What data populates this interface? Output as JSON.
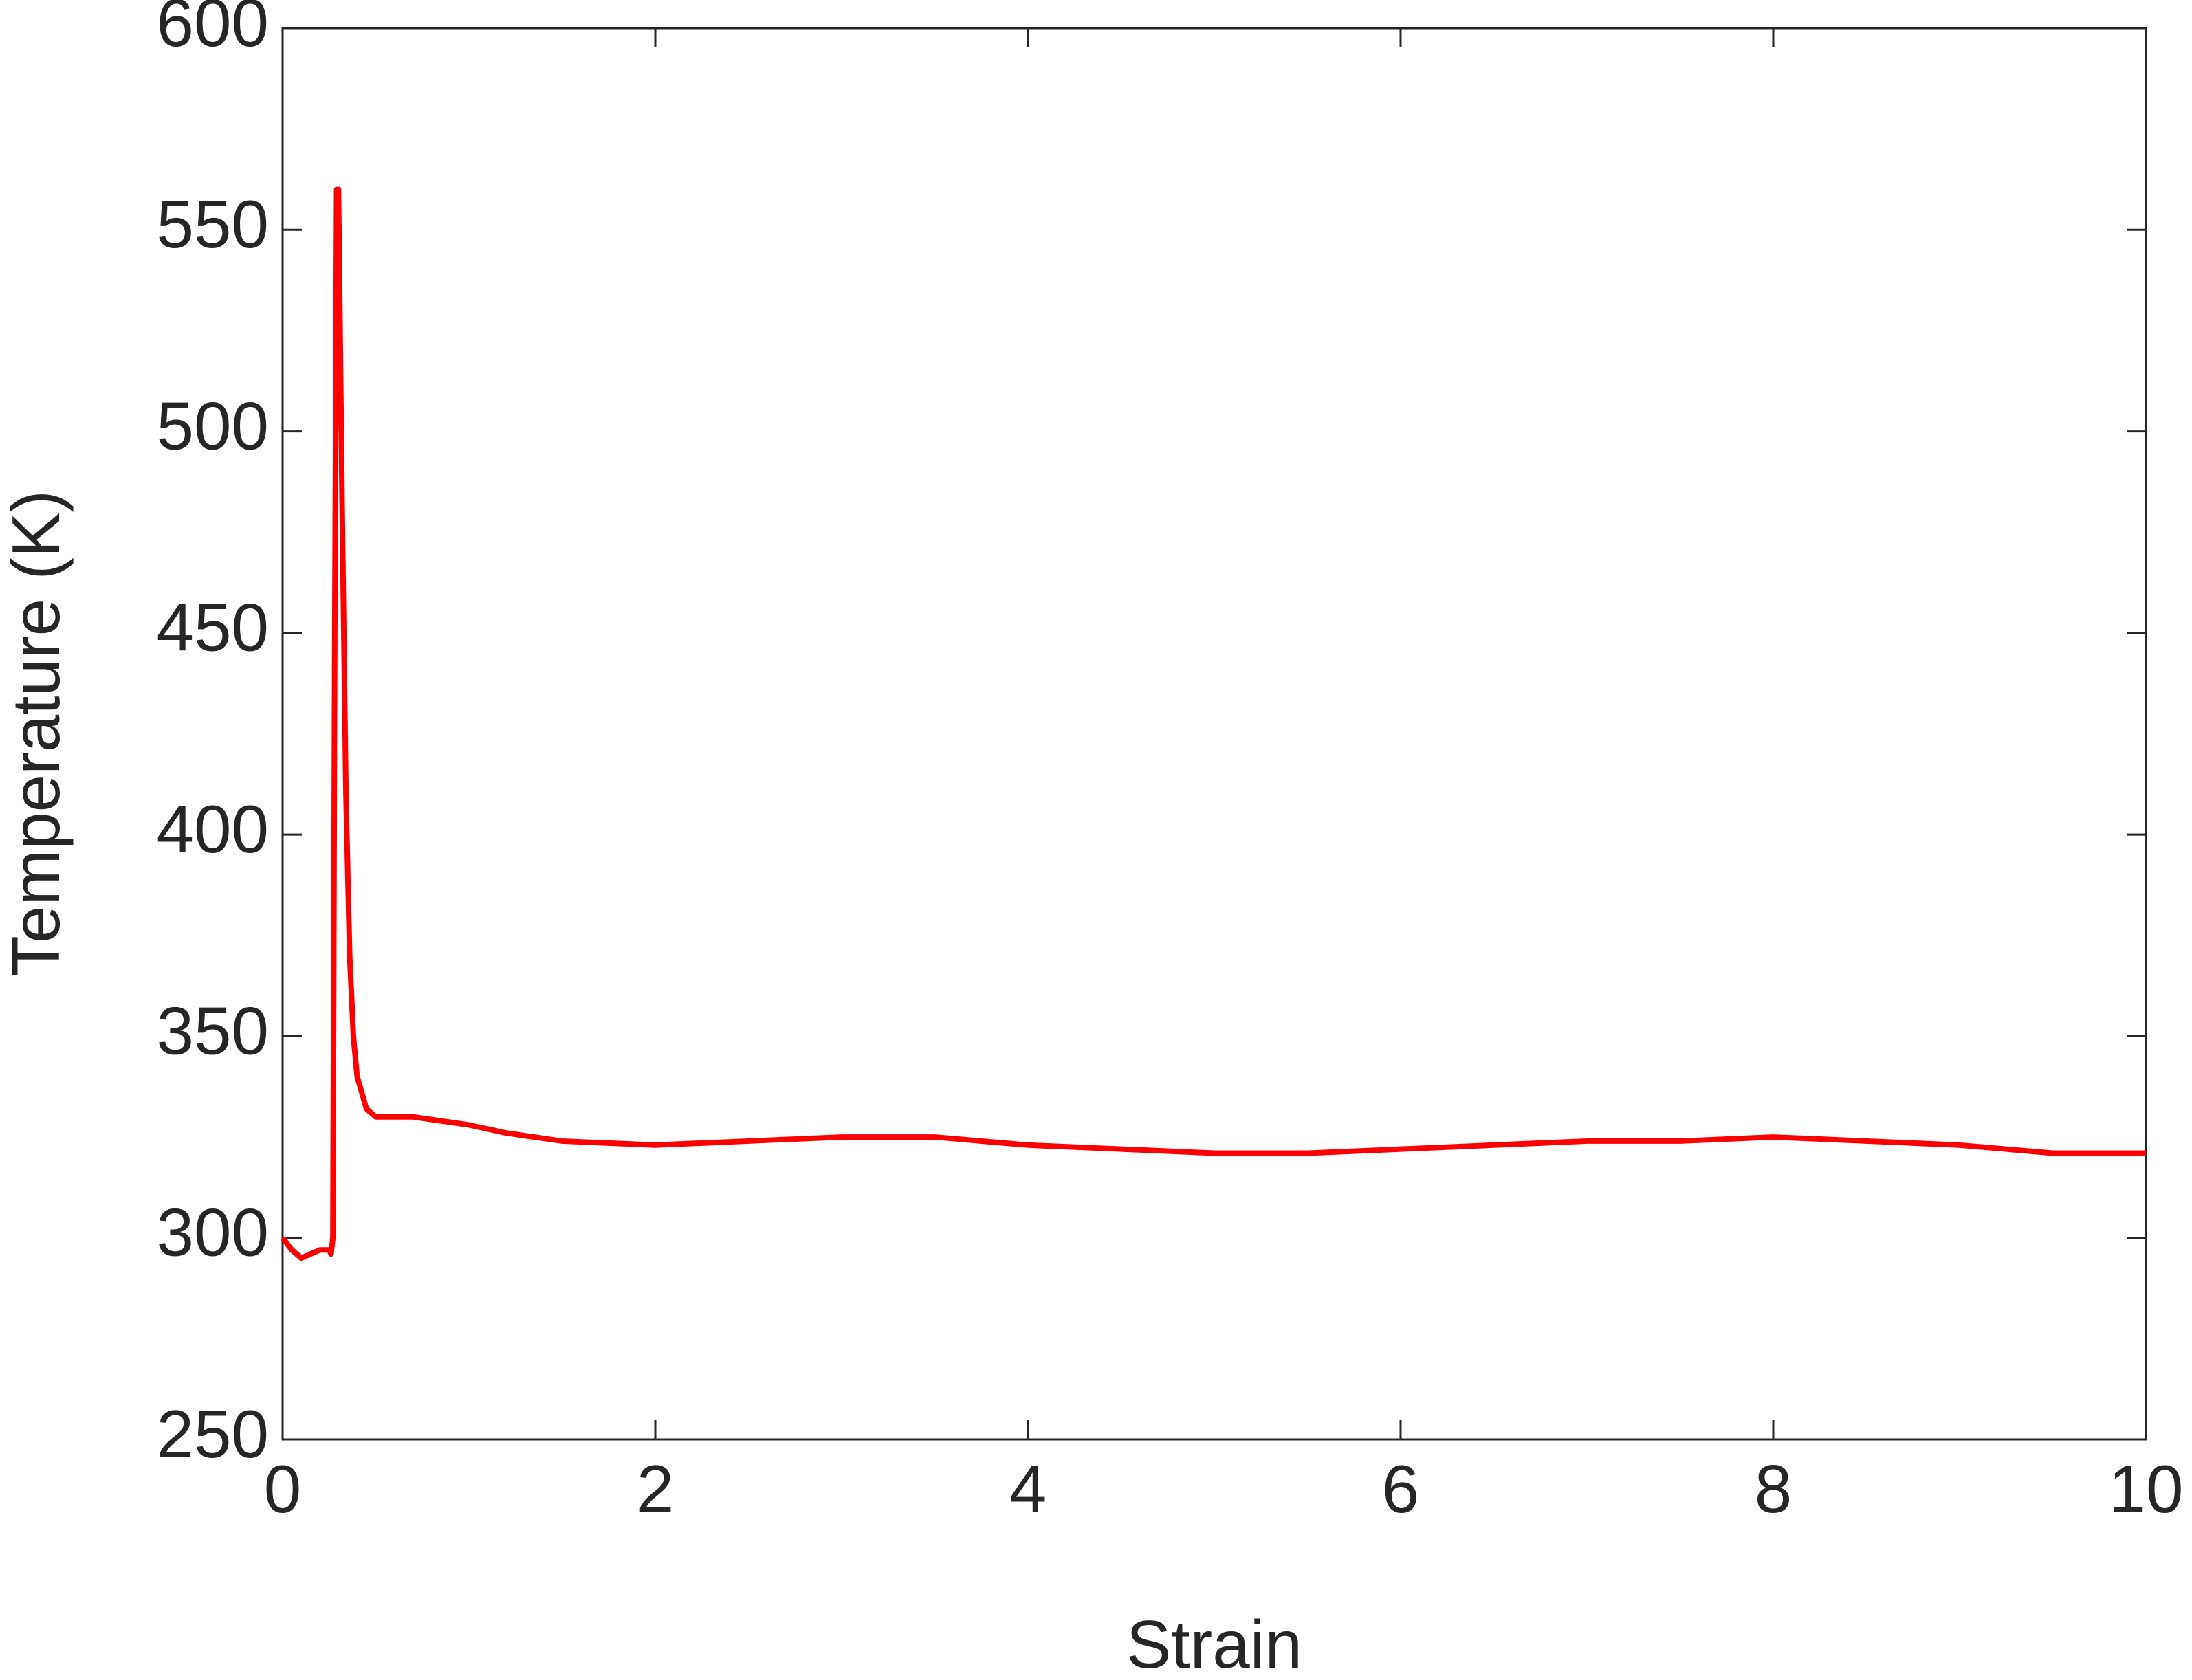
{
  "chart_data": {
    "type": "line",
    "x_label": "Strain",
    "y_label": "Temperature (K)",
    "xlim": [
      0,
      10
    ],
    "xticks": [
      0,
      2,
      4,
      6,
      8,
      10
    ],
    "ylim": [
      250,
      600
    ],
    "yticks": [
      250,
      300,
      350,
      400,
      450,
      500,
      550,
      600
    ],
    "grid": false,
    "series": [
      {
        "color": "#ff0000",
        "x": [
          0,
          0.05,
          0.1,
          0.15,
          0.2,
          0.25,
          0.26,
          0.27,
          0.28,
          0.29,
          0.3,
          0.32,
          0.34,
          0.36,
          0.38,
          0.4,
          0.45,
          0.5,
          0.7,
          1.0,
          1.2,
          1.5,
          2.0,
          2.5,
          3.0,
          3.5,
          4.0,
          4.5,
          5.0,
          5.5,
          6.0,
          6.5,
          7.0,
          7.5,
          8.0,
          8.5,
          9.0,
          9.5,
          10
        ],
        "values": [
          300,
          297,
          295,
          296,
          297,
          297,
          296,
          300,
          450,
          560,
          560,
          480,
          410,
          370,
          350,
          340,
          332,
          330,
          330,
          328,
          326,
          324,
          323,
          324,
          325,
          325,
          323,
          322,
          321,
          321,
          322,
          323,
          324,
          324,
          325,
          324,
          323,
          321,
          321
        ]
      }
    ]
  }
}
